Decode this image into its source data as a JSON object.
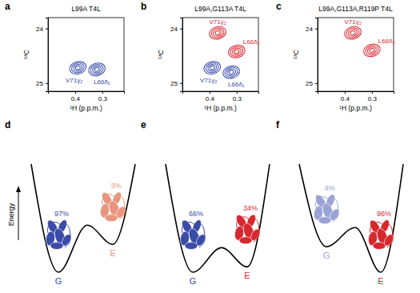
{
  "chart_data": [
    {
      "type": "contour",
      "panel": "a",
      "title": "L99A T4L",
      "xlabel": "¹H (p.p.m.)",
      "ylabel": "¹³C",
      "xlim": [
        0.5,
        0.22
      ],
      "xticks": [
        0.4,
        0.3
      ],
      "ylim": [
        23.8,
        25.15
      ],
      "yticks": [
        24,
        25
      ],
      "peaks": [
        {
          "label": "V71γ₂",
          "x": 0.39,
          "y": 24.72,
          "color": "#3346a6"
        },
        {
          "label": "L66δ₁",
          "x": 0.32,
          "y": 24.75,
          "color": "#3346a6"
        }
      ]
    },
    {
      "type": "contour",
      "panel": "b",
      "title": "L99A,G113A T4L",
      "xlabel": "¹H (p.p.m.)",
      "ylabel": "¹³C",
      "xlim": [
        0.5,
        0.22
      ],
      "xticks": [
        0.4,
        0.3
      ],
      "ylim": [
        23.8,
        25.15
      ],
      "yticks": [
        24,
        25
      ],
      "peaks": [
        {
          "label": "V71γ₂",
          "x": 0.39,
          "y": 24.72,
          "color": "#3346a6"
        },
        {
          "label": "L66δ₁",
          "x": 0.32,
          "y": 24.8,
          "color": "#3346a6"
        },
        {
          "label": "V71γ₂",
          "x": 0.37,
          "y": 24.08,
          "color": "#d7282f"
        },
        {
          "label": "L66δ₁",
          "x": 0.3,
          "y": 24.42,
          "color": "#d7282f"
        }
      ]
    },
    {
      "type": "contour",
      "panel": "c",
      "title": "L99A,G113A,R119P T4L",
      "xlabel": "¹H (p.p.m.)",
      "ylabel": "¹³C",
      "xlim": [
        0.5,
        0.22
      ],
      "xticks": [
        0.4,
        0.3
      ],
      "ylim": [
        23.8,
        25.15
      ],
      "yticks": [
        24,
        25
      ],
      "peaks": [
        {
          "label": "V71γ₂",
          "x": 0.37,
          "y": 24.08,
          "color": "#d7282f"
        },
        {
          "label": "L66δ₁",
          "x": 0.3,
          "y": 24.4,
          "color": "#d7282f"
        }
      ]
    },
    {
      "type": "energy_landscape",
      "panel": "d",
      "ylabel": "Energy",
      "categories": [
        "G",
        "E"
      ],
      "values": [
        97,
        3
      ],
      "value_labels": [
        "97%",
        "3%"
      ],
      "colors": [
        "#3b4ba8",
        "#e9957f"
      ]
    },
    {
      "type": "energy_landscape",
      "panel": "e",
      "categories": [
        "G",
        "E"
      ],
      "values": [
        66,
        34
      ],
      "value_labels": [
        "66%",
        "34%"
      ],
      "colors": [
        "#3b4ba8",
        "#d7282f"
      ]
    },
    {
      "type": "energy_landscape",
      "panel": "f",
      "categories": [
        "G",
        "E"
      ],
      "values": [
        4,
        96
      ],
      "value_labels": [
        "4%",
        "96%"
      ],
      "colors": [
        "#9aa3d6",
        "#d7282f"
      ]
    }
  ]
}
